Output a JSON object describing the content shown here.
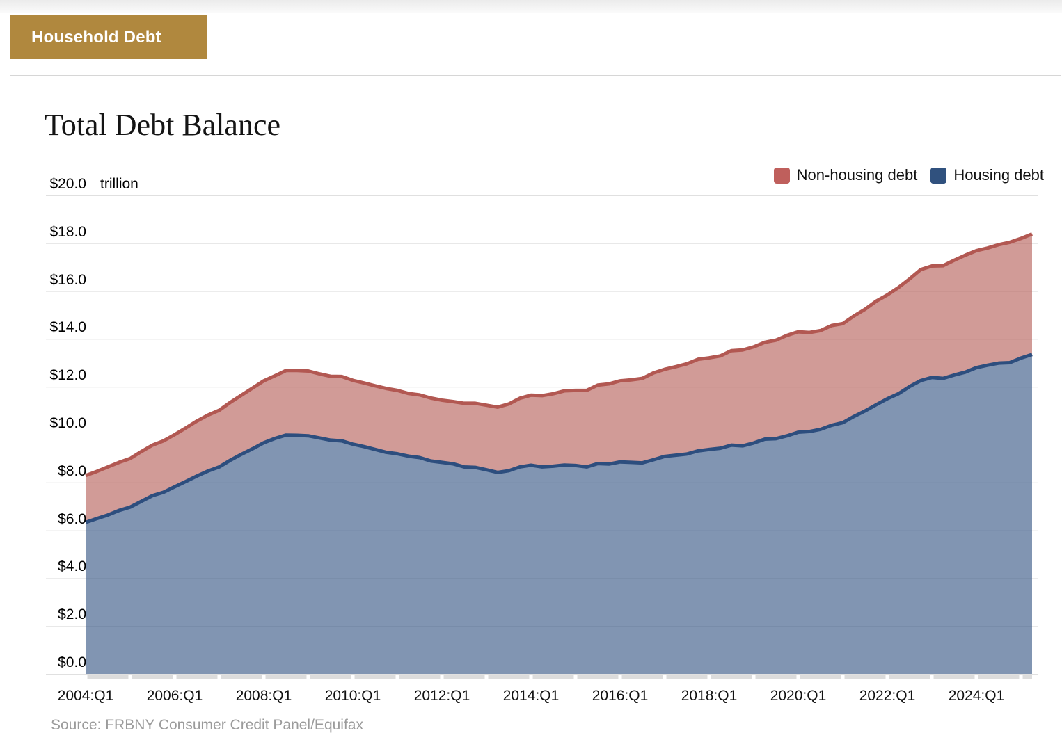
{
  "page": {
    "top_tab": "Household Debt",
    "source": "Source: FRBNY Consumer Credit Panel/Equifax"
  },
  "chart_data": {
    "type": "area",
    "stacked": true,
    "title": "Total Debt Balance",
    "grid": true,
    "legend_position": "top-right",
    "y_axis": {
      "unit": "trillion",
      "min": 0,
      "max": 20,
      "tick_step": 2,
      "tick_labels_top_to_bottom": [
        "$20.0",
        "$18.0",
        "$16.0",
        "$14.0",
        "$12.0",
        "$10.0",
        "$8.0",
        "$6.0",
        "$4.0",
        "$2.0",
        "$0.0"
      ]
    },
    "x_axis": {
      "start": "2004:Q1",
      "end": "2025:Q2",
      "frequency": "quarterly",
      "tick_labels": [
        "2004:Q1",
        "2006:Q1",
        "2008:Q1",
        "2010:Q1",
        "2012:Q1",
        "2014:Q1",
        "2016:Q1",
        "2018:Q1",
        "2020:Q1",
        "2022:Q1",
        "2024:Q1"
      ],
      "tick_every_n_points": 8
    },
    "legend": [
      {
        "label": "Non-housing debt",
        "color": "#bf5f5c"
      },
      {
        "label": "Housing debt",
        "color": "#30517e"
      }
    ],
    "series": [
      {
        "name": "Housing debt",
        "line_color": "#2d4e7e",
        "fill_opacity": 0.6,
        "values": [
          6.33,
          6.49,
          6.64,
          6.83,
          6.97,
          7.21,
          7.45,
          7.59,
          7.82,
          8.04,
          8.27,
          8.48,
          8.65,
          8.93,
          9.18,
          9.41,
          9.66,
          9.84,
          9.98,
          9.97,
          9.95,
          9.86,
          9.77,
          9.74,
          9.6,
          9.5,
          9.38,
          9.26,
          9.2,
          9.1,
          9.04,
          8.9,
          8.84,
          8.78,
          8.65,
          8.63,
          8.53,
          8.42,
          8.49,
          8.65,
          8.72,
          8.65,
          8.68,
          8.73,
          8.71,
          8.65,
          8.79,
          8.77,
          8.86,
          8.84,
          8.82,
          8.95,
          9.09,
          9.14,
          9.19,
          9.32,
          9.38,
          9.43,
          9.56,
          9.53,
          9.65,
          9.81,
          9.83,
          9.95,
          10.1,
          10.13,
          10.22,
          10.39,
          10.5,
          10.76,
          10.99,
          11.25,
          11.5,
          11.71,
          12.01,
          12.26,
          12.39,
          12.35,
          12.49,
          12.61,
          12.8,
          12.9,
          12.99,
          13.01,
          13.2,
          13.35
        ]
      },
      {
        "name": "Non-housing debt",
        "line_color": "#b25852",
        "fill_opacity": 0.6,
        "values": [
          1.96,
          1.97,
          2.01,
          2.01,
          2.03,
          2.08,
          2.11,
          2.15,
          2.18,
          2.24,
          2.3,
          2.34,
          2.37,
          2.42,
          2.47,
          2.54,
          2.59,
          2.62,
          2.7,
          2.71,
          2.71,
          2.68,
          2.67,
          2.69,
          2.67,
          2.66,
          2.66,
          2.67,
          2.65,
          2.62,
          2.62,
          2.63,
          2.6,
          2.6,
          2.66,
          2.68,
          2.7,
          2.73,
          2.79,
          2.87,
          2.93,
          2.98,
          3.03,
          3.1,
          3.14,
          3.2,
          3.28,
          3.35,
          3.39,
          3.45,
          3.53,
          3.63,
          3.64,
          3.7,
          3.77,
          3.83,
          3.83,
          3.86,
          3.95,
          4.01,
          4.02,
          4.05,
          4.12,
          4.2,
          4.2,
          4.14,
          4.13,
          4.17,
          4.14,
          4.2,
          4.25,
          4.33,
          4.34,
          4.44,
          4.5,
          4.64,
          4.66,
          4.71,
          4.8,
          4.89,
          4.89,
          4.9,
          4.95,
          5.03,
          5.0,
          5.04
        ]
      }
    ]
  }
}
